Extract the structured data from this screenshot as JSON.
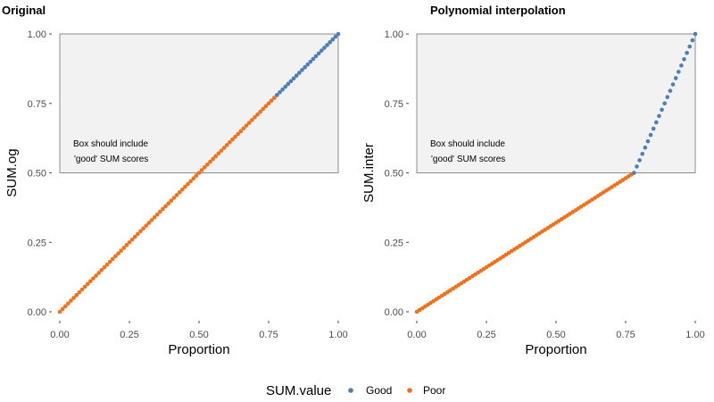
{
  "colors": {
    "good": "#4a7fb8",
    "poor": "#f0711c",
    "box_fill": "#f2f2f2",
    "box_stroke": "#8c8c8c"
  },
  "legend": {
    "title": "SUM.value",
    "items": [
      {
        "label": "Good",
        "color": "#4a7fb8"
      },
      {
        "label": "Poor",
        "color": "#f0711c"
      }
    ],
    "placement": "bottom"
  },
  "chart_data": [
    {
      "type": "scatter",
      "title": "Original",
      "xlabel": "Proportion",
      "ylabel": "SUM.og",
      "xlim": [
        0,
        1
      ],
      "ylim": [
        0,
        1
      ],
      "xticks": [
        "0.00",
        "0.25",
        "0.50",
        "0.75",
        "1.00"
      ],
      "yticks": [
        "0.00",
        "0.25",
        "0.50",
        "0.75",
        "1.00"
      ],
      "grid": false,
      "annotation": {
        "lines": [
          "Box should include",
          "'good' SUM scores"
        ],
        "box": {
          "x": [
            0,
            1
          ],
          "y": [
            0.5,
            1
          ]
        }
      },
      "series": [
        {
          "name": "Poor",
          "color": "#f0711c",
          "function": "y = x",
          "x_range": [
            0,
            0.78
          ],
          "n_points": 79
        },
        {
          "name": "Good",
          "color": "#4a7fb8",
          "function": "y = x",
          "x_range": [
            0.78,
            1
          ],
          "n_points": 23
        }
      ]
    },
    {
      "type": "scatter",
      "title": "Polynomial interpolation",
      "xlabel": "Proportion",
      "ylabel": "SUM.inter",
      "xlim": [
        0,
        1
      ],
      "ylim": [
        0,
        1
      ],
      "xticks": [
        "0.00",
        "0.25",
        "0.50",
        "0.75",
        "1.00"
      ],
      "yticks": [
        "0.00",
        "0.25",
        "0.50",
        "0.75",
        "1.00"
      ],
      "grid": false,
      "annotation": {
        "lines": [
          "Box should include",
          "'good' SUM scores"
        ],
        "box": {
          "x": [
            0,
            1
          ],
          "y": [
            0.5,
            1
          ]
        }
      },
      "series": [
        {
          "name": "Poor",
          "color": "#f0711c",
          "function": "y = 0.5 * x / 0.78",
          "x_range": [
            0,
            0.78
          ],
          "n_points": 79
        },
        {
          "name": "Good",
          "color": "#4a7fb8",
          "function": "y = 0.5 + 0.5 * (x - 0.78) / 0.22",
          "x_range": [
            0.78,
            1
          ],
          "n_points": 23
        }
      ]
    }
  ]
}
